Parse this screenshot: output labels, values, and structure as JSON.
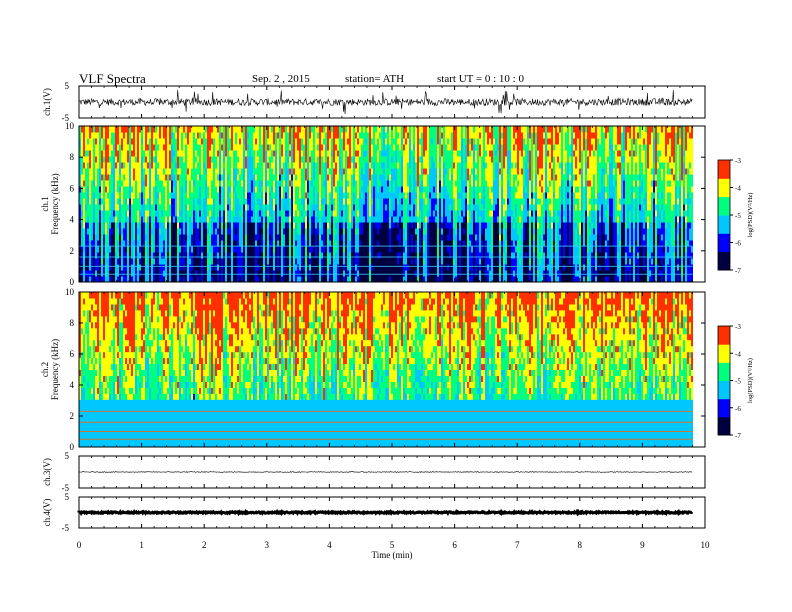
{
  "header": {
    "title": "VLF  Spectra",
    "date": "Sep. 2  , 2015",
    "station": "station= ATH",
    "start": "start  UT =   0  : 10 : 0"
  },
  "colors": {
    "spectrogram_scale": [
      "#000040",
      "#0000ff",
      "#00c8ff",
      "#00ff80",
      "#ffff00",
      "#ff3000",
      "#ffffff"
    ]
  },
  "chart_data": [
    {
      "type": "line",
      "panel": "ch1-waveform",
      "ylabel": "ch.1(V)",
      "ylim": [
        -5,
        5
      ],
      "yticks": [
        "5",
        "-5"
      ],
      "xlim": [
        0,
        10
      ],
      "baseline": 0
    },
    {
      "type": "heatmap",
      "panel": "ch1-spectrogram",
      "ylabel": "ch.1 Frequency  (kHz)",
      "ylim": [
        0,
        10
      ],
      "yticks": [
        "0",
        "2",
        "4",
        "6",
        "8",
        "10"
      ],
      "xlim": [
        0,
        10
      ],
      "data_end_min": 9.8,
      "colorbar": {
        "label": "log(PSD)(V²/Hz)",
        "range": [
          -7,
          -3
        ],
        "ticks": [
          "-3",
          "-4",
          "-5",
          "-6",
          "-7"
        ]
      }
    },
    {
      "type": "heatmap",
      "panel": "ch2-spectrogram",
      "ylabel": "ch.2 Frequency  (kHz)",
      "ylim": [
        0,
        10
      ],
      "yticks": [
        "0",
        "2",
        "4",
        "6",
        "8",
        "10"
      ],
      "xlim": [
        0,
        10
      ],
      "data_end_min": 9.8,
      "colorbar": {
        "label": "log(PSD)(V²/Hz)",
        "range": [
          -7,
          -3
        ],
        "ticks": [
          "-3",
          "-4",
          "-5",
          "-6",
          "-7"
        ]
      }
    },
    {
      "type": "line",
      "panel": "ch3-waveform",
      "ylabel": "ch.3(V)",
      "ylim": [
        -5,
        5
      ],
      "yticks": [
        "5",
        "-5"
      ],
      "xlim": [
        0,
        10
      ],
      "baseline": 0
    },
    {
      "type": "line",
      "panel": "ch4-waveform",
      "ylabel": "ch.4(V)",
      "ylim": [
        -5,
        5
      ],
      "yticks": [
        "5",
        "-5"
      ],
      "xlim": [
        0,
        10
      ],
      "baseline": 0
    }
  ],
  "xaxis": {
    "label": "Time  (min)",
    "ticks": [
      "0",
      "1",
      "2",
      "3",
      "4",
      "5",
      "6",
      "7",
      "8",
      "9",
      "10"
    ]
  }
}
